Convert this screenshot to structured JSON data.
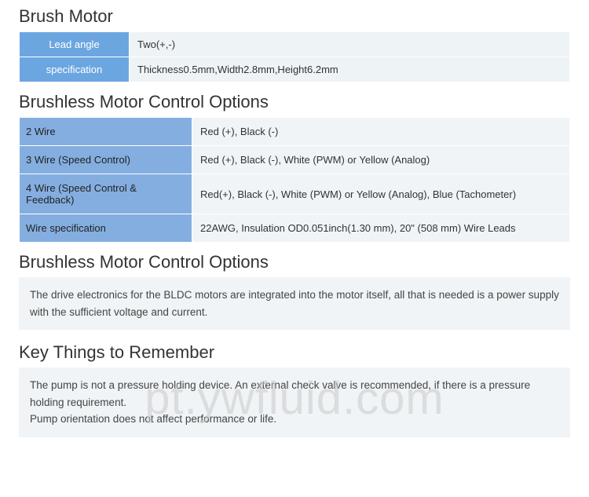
{
  "sections": {
    "brush_motor": {
      "title": "Brush Motor",
      "rows": [
        {
          "label": "Lead angle",
          "value": "Two(+,-)"
        },
        {
          "label": "specification",
          "value": "Thickness0.5mm,Width2.8mm,Height6.2mm"
        }
      ]
    },
    "brushless_options": {
      "title": "Brushless Motor Control Options",
      "rows": [
        {
          "label": "2 Wire",
          "value": "Red (+), Black (-)"
        },
        {
          "label": "3 Wire (Speed Control)",
          "value": "Red (+), Black (-), White (PWM) or Yellow (Analog)"
        },
        {
          "label": "4 Wire (Speed Control & Feedback)",
          "value": "Red(+), Black (-), White (PWM) or Yellow (Analog), Blue (Tachometer)"
        },
        {
          "label": "Wire specification",
          "value": "22AWG, Insulation OD0.051inch(1.30 mm), 20\" (508 mm) Wire Leads"
        }
      ]
    },
    "brushless_note": {
      "title": "Brushless Motor Control Options",
      "text": "The drive electronics for the BLDC motors are integrated into the motor itself, all that is needed is a power supply with the sufficient voltage and current."
    },
    "key_things": {
      "title": "Key Things to Remember",
      "text1": "The pump is not a pressure holding device. An external check valve is recommended, if there is a pressure holding requirement.",
      "text2": "Pump orientation does not affect performance or life."
    }
  },
  "watermark": "pt.ywfluid.com",
  "styling": {
    "title_fontsize": 22,
    "title_color": "#333333",
    "table1_label_bg": "#6ca6e0",
    "table1_label_color": "#ffffff",
    "table1_value_bg": "#eef3f6",
    "table2_label_bg": "#84aee0",
    "table2_label_color": "#222222",
    "table2_value_bg": "#f0f4f7",
    "note_bg": "#f0f4f7",
    "body_bg": "#ffffff",
    "watermark_color": "rgba(200,200,200,0.55)",
    "font_family": "Segoe UI, Arial, sans-serif",
    "body_fontsize": 13
  }
}
